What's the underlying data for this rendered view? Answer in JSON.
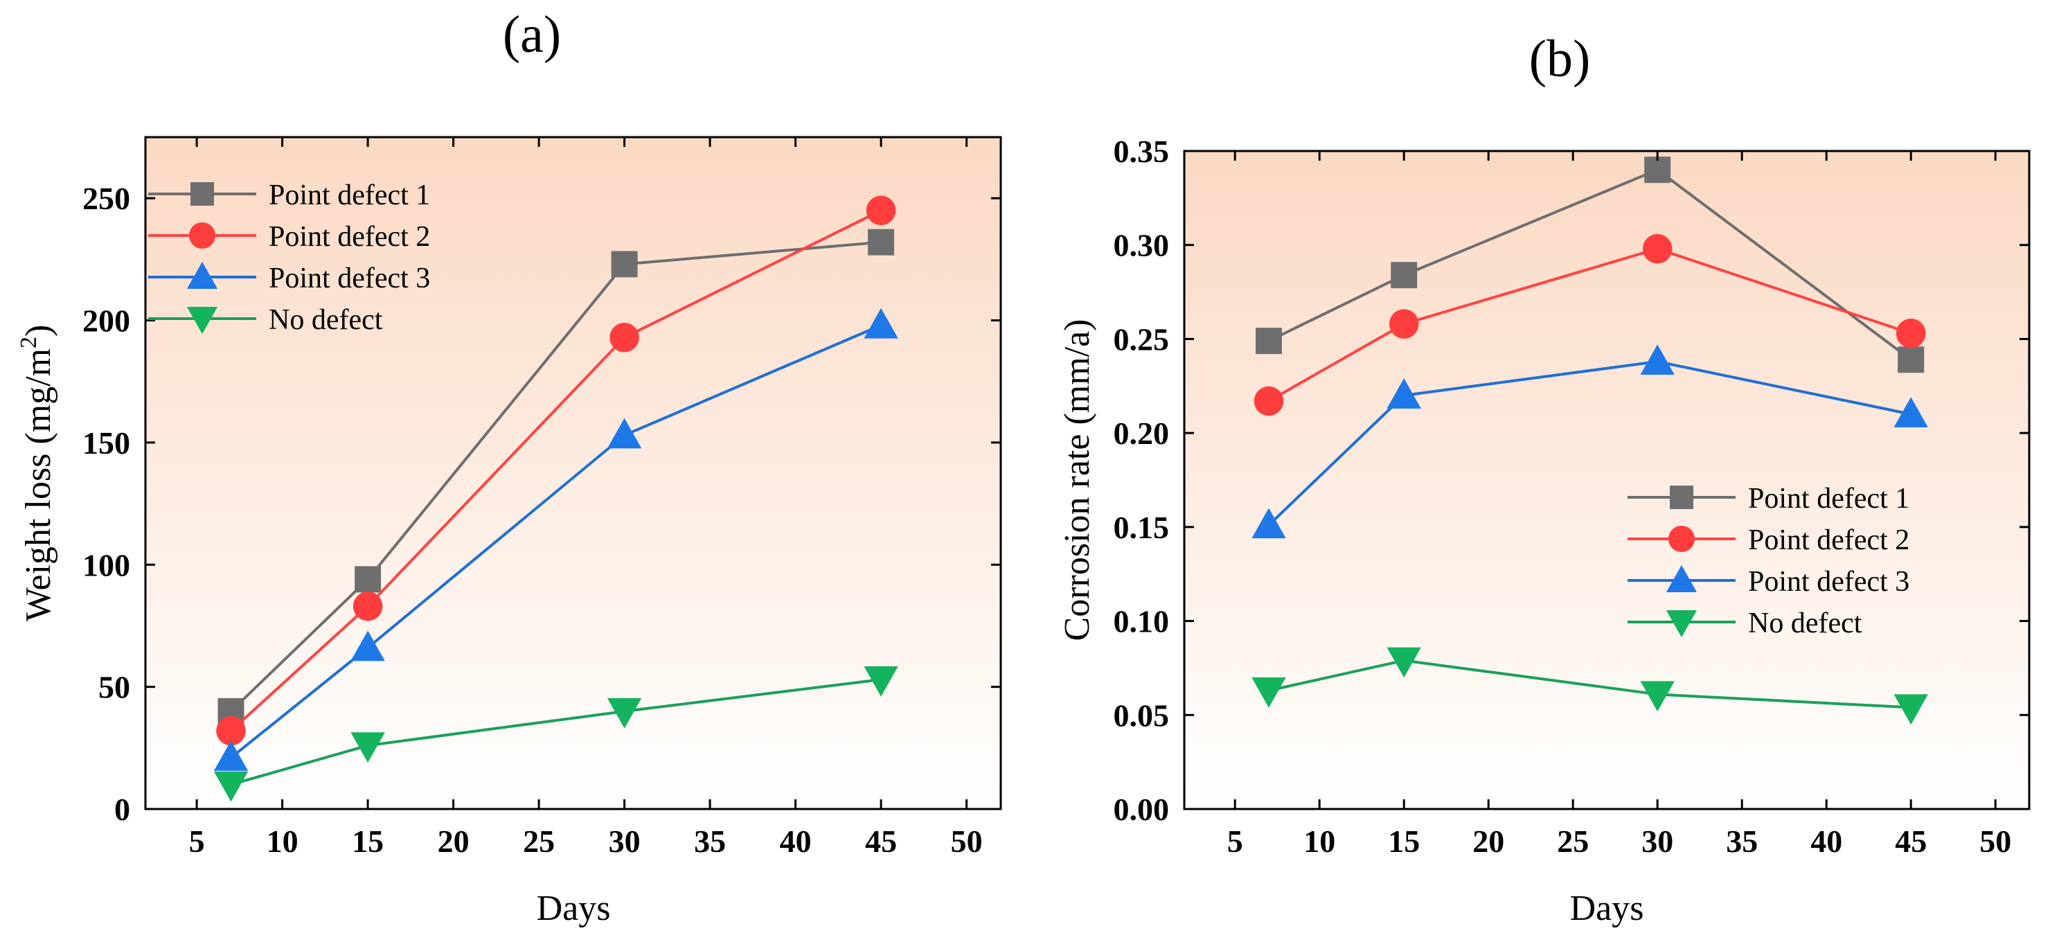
{
  "chart_data": [
    {
      "id": "a",
      "type": "line",
      "panel_label": "(a)",
      "xlabel": "Days",
      "ylabel": "Weight loss (mg/m",
      "ylabel_sup": "2",
      "ylabel_close": ")",
      "xlim": [
        2,
        52
      ],
      "ylim": [
        0,
        275
      ],
      "xticks": [
        5,
        10,
        15,
        20,
        25,
        30,
        35,
        40,
        45,
        50
      ],
      "yticks": [
        0,
        50,
        100,
        150,
        200,
        250
      ],
      "ytick_labels": [
        "0",
        "50",
        "100",
        "150",
        "200",
        "250"
      ],
      "legend_position": "top-left",
      "x": [
        7,
        15,
        30,
        45
      ],
      "series": [
        {
          "name": "Point defect 1",
          "marker": "square",
          "line_color": "#6e6e6e",
          "marker_color": "#6e6e6e",
          "values": [
            40,
            94,
            223,
            232
          ]
        },
        {
          "name": "Point defect 2",
          "marker": "circle",
          "line_color": "#ff4444",
          "marker_color": "#ff3d3d",
          "values": [
            32,
            83,
            193,
            245
          ]
        },
        {
          "name": "Point defect 3",
          "marker": "triangle-up",
          "line_color": "#1f6fd6",
          "marker_color": "#1f78e8",
          "values": [
            21,
            66,
            153,
            198
          ]
        },
        {
          "name": "No defect",
          "marker": "triangle-down",
          "line_color": "#1aa05a",
          "marker_color": "#14b35e",
          "values": [
            10,
            26,
            40,
            53
          ]
        }
      ]
    },
    {
      "id": "b",
      "type": "line",
      "panel_label": "(b)",
      "xlabel": "Days",
      "ylabel": "Corrosion rate (mm/a)",
      "ylabel_sup": "",
      "ylabel_close": "",
      "xlim": [
        2,
        52
      ],
      "ylim": [
        0,
        0.35
      ],
      "xticks": [
        5,
        10,
        15,
        20,
        25,
        30,
        35,
        40,
        45,
        50
      ],
      "yticks": [
        0,
        0.05,
        0.1,
        0.15,
        0.2,
        0.25,
        0.3,
        0.35
      ],
      "ytick_labels": [
        "0.00",
        "0.05",
        "0.10",
        "0.15",
        "0.20",
        "0.25",
        "0.30",
        "0.35"
      ],
      "legend_position": "bottom-right",
      "x": [
        7,
        15,
        30,
        45
      ],
      "series": [
        {
          "name": "Point defect 1",
          "marker": "square",
          "line_color": "#6e6e6e",
          "marker_color": "#6e6e6e",
          "values": [
            0.249,
            0.284,
            0.34,
            0.239
          ]
        },
        {
          "name": "Point defect 2",
          "marker": "circle",
          "line_color": "#ff4444",
          "marker_color": "#ff3d3d",
          "values": [
            0.217,
            0.258,
            0.298,
            0.253
          ]
        },
        {
          "name": "Point defect 3",
          "marker": "triangle-up",
          "line_color": "#1f6fd6",
          "marker_color": "#1f78e8",
          "values": [
            0.151,
            0.22,
            0.238,
            0.21
          ]
        },
        {
          "name": "No defect",
          "marker": "triangle-down",
          "line_color": "#1aa05a",
          "marker_color": "#14b35e",
          "values": [
            0.063,
            0.079,
            0.061,
            0.054
          ]
        }
      ]
    }
  ],
  "colors": {
    "plot_gradient_top": "#fbd9c3",
    "plot_gradient_bottom": "#ffffff"
  }
}
